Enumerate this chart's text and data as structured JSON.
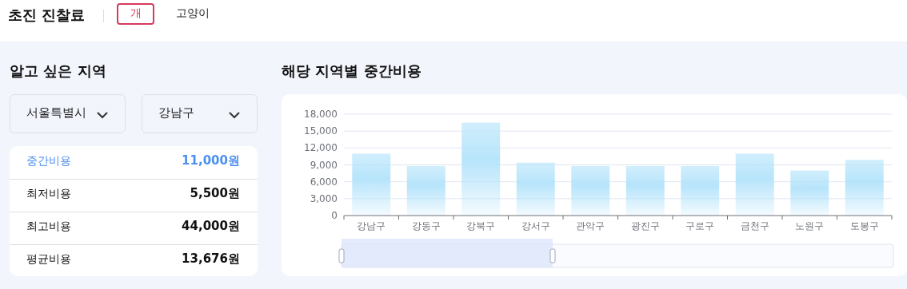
{
  "chart_data": {
    "type": "bar",
    "title": "해당 지역별 중간비용",
    "categories": [
      "강남구",
      "강동구",
      "강북구",
      "강서구",
      "관악구",
      "광진구",
      "구로구",
      "금천구",
      "노원구",
      "도봉구"
    ],
    "values": [
      11000,
      8800,
      16500,
      9400,
      8800,
      8800,
      8800,
      11000,
      8000,
      9900
    ],
    "color": "#b3e3fb",
    "ylim": [
      0,
      18000
    ],
    "yticks": [
      {
        "value": 0,
        "label": "0"
      },
      {
        "value": 3000,
        "label": "3,000"
      },
      {
        "value": 6000,
        "label": "6,000"
      },
      {
        "value": 9000,
        "label": "9,000"
      },
      {
        "value": 12000,
        "label": "12,000"
      },
      {
        "value": 15000,
        "label": "15,000"
      },
      {
        "value": 18000,
        "label": "18,000"
      }
    ],
    "grid": "y",
    "annotations": [
      "초진 진찰료",
      "개",
      "고양이",
      "알고 싶은 지역",
      "서울특별시",
      "강남구",
      "중간비용",
      "11,000원",
      "최저비용",
      "5,500원",
      "최고비용",
      "44,000원",
      "평균비용",
      "13,676원"
    ]
  }
}
